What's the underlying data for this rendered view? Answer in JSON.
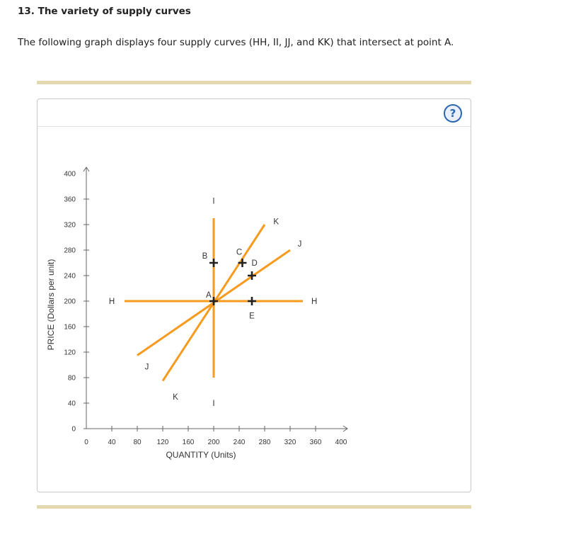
{
  "question": {
    "title": "13. The variety of supply curves",
    "text": "The following graph displays four supply curves (HH, II, JJ, and KK) that intersect at point A."
  },
  "help": {
    "label": "?"
  },
  "chart_data": {
    "type": "line",
    "xlabel": "QUANTITY (Units)",
    "ylabel": "PRICE (Dollars per unit)",
    "xlim": [
      0,
      400
    ],
    "ylim": [
      0,
      400
    ],
    "xticks": [
      0,
      40,
      80,
      120,
      160,
      200,
      240,
      280,
      320,
      360,
      400
    ],
    "yticks": [
      0,
      40,
      80,
      120,
      160,
      200,
      240,
      280,
      320,
      360,
      400
    ],
    "curve_color": "#f79a1e",
    "marker_color": "#222222",
    "curves": [
      {
        "name": "H",
        "points": [
          [
            60,
            200
          ],
          [
            340,
            200
          ]
        ],
        "labels": [
          {
            "text": "H",
            "at": [
              40,
              200
            ]
          },
          {
            "text": "H",
            "at": [
              358,
              200
            ]
          }
        ]
      },
      {
        "name": "I",
        "points": [
          [
            200,
            80
          ],
          [
            200,
            330
          ]
        ],
        "labels": [
          {
            "text": "I",
            "at": [
              200,
              357
            ]
          },
          {
            "text": "I",
            "at": [
              200,
              40
            ]
          }
        ]
      },
      {
        "name": "J",
        "points": [
          [
            80,
            115
          ],
          [
            320,
            280
          ]
        ],
        "labels": [
          {
            "text": "J",
            "at": [
              95,
              97
            ]
          },
          {
            "text": "J",
            "at": [
              335,
              290
            ]
          }
        ]
      },
      {
        "name": "K",
        "points": [
          [
            120,
            75
          ],
          [
            280,
            320
          ]
        ],
        "labels": [
          {
            "text": "K",
            "at": [
              140,
              50
            ]
          },
          {
            "text": "K",
            "at": [
              298,
              325
            ]
          }
        ]
      }
    ],
    "points": [
      {
        "name": "A",
        "x": 200,
        "y": 200,
        "label_at": [
          192,
          210
        ]
      },
      {
        "name": "B",
        "x": 200,
        "y": 260,
        "label_at": [
          186,
          271
        ]
      },
      {
        "name": "C",
        "x": 245,
        "y": 260,
        "label_at": [
          240,
          277
        ]
      },
      {
        "name": "D",
        "x": 260,
        "y": 240,
        "label_at": [
          264,
          260
        ]
      },
      {
        "name": "E",
        "x": 260,
        "y": 200,
        "label_at": [
          260,
          177
        ]
      }
    ]
  }
}
